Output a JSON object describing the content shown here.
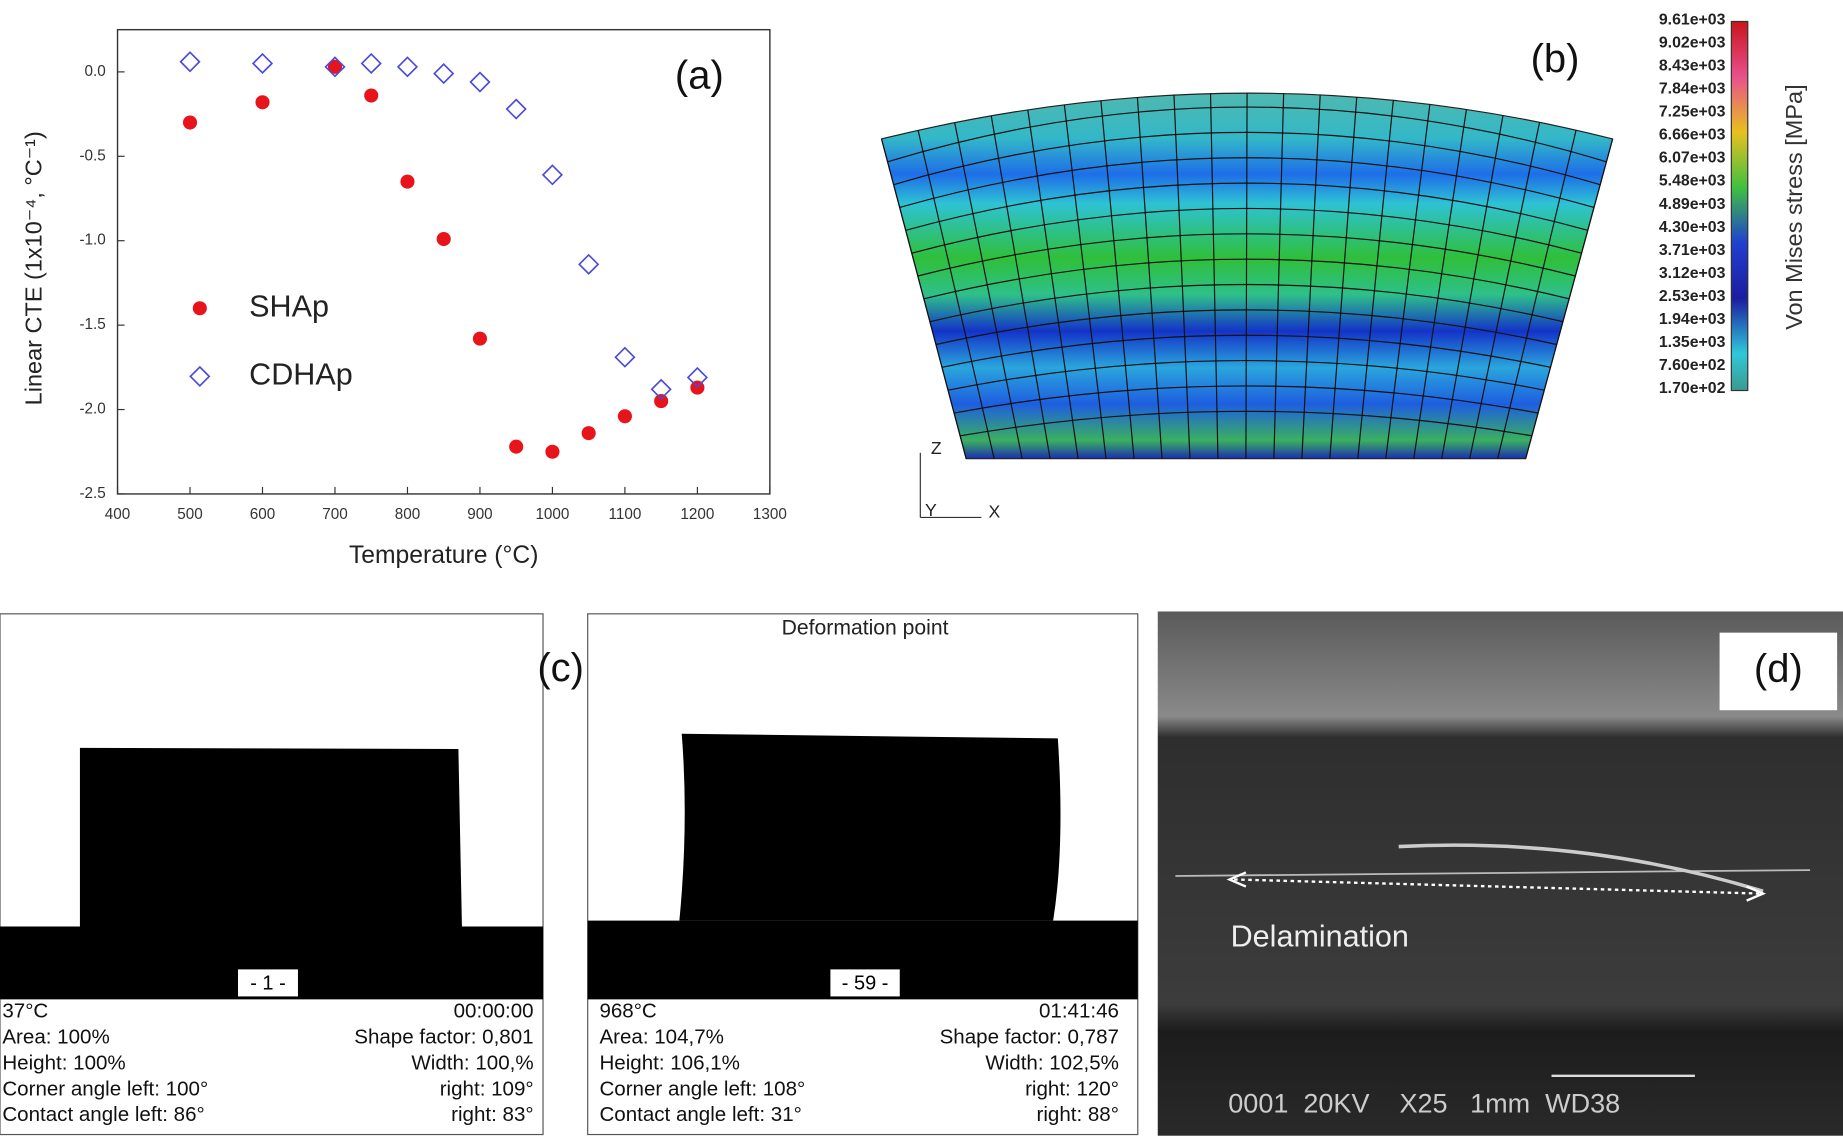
{
  "chart_data": {
    "type": "scatter",
    "panel_label": "(a)",
    "xlabel": "Temperature (°C)",
    "ylabel": "Linear CTE (1x10⁻⁴, °C⁻¹)",
    "x": [
      500,
      600,
      700,
      750,
      800,
      850,
      900,
      950,
      1000,
      1050,
      1100,
      1150,
      1200
    ],
    "xlim": [
      400,
      1300
    ],
    "xticks": [
      400,
      500,
      600,
      700,
      800,
      900,
      1000,
      1100,
      1200,
      1300
    ],
    "ylim": [
      -2.5,
      0.25
    ],
    "yticks": [
      {
        "value": 0,
        "label": "0.0"
      },
      -0.5,
      {
        "value": -1,
        "label": "-1.0"
      },
      -1.5,
      {
        "value": -2,
        "label": "-2.0"
      },
      -2.5
    ],
    "series": [
      {
        "name": "SHAp",
        "color": "#e8141c",
        "marker": "circle",
        "values": [
          -0.3,
          -0.18,
          0.03,
          -0.14,
          -0.65,
          -0.99,
          -1.58,
          -2.22,
          -2.25,
          -2.14,
          -2.04,
          -1.95,
          -1.87
        ]
      },
      {
        "name": "CDHAp",
        "color": "#4a4adc",
        "marker": "diamond",
        "values": [
          0.06,
          0.05,
          0.03,
          0.05,
          0.03,
          -0.01,
          -0.06,
          -0.22,
          -0.61,
          -1.14,
          -1.69,
          -1.88,
          -1.81
        ]
      }
    ]
  },
  "panel_b": {
    "label": "(b)",
    "colorbar_label": "Von Mises stress [MPa]",
    "colorbar_ticks": [
      "9.61e+03",
      "9.02e+03",
      "8.43e+03",
      "7.84e+03",
      "7.25e+03",
      "6.66e+03",
      "6.07e+03",
      "5.48e+03",
      "4.89e+03",
      "4.30e+03",
      "3.71e+03",
      "3.12e+03",
      "2.53e+03",
      "1.94e+03",
      "1.35e+03",
      "7.60e+02",
      "1.70e+02"
    ],
    "axes": [
      "Z",
      "Y",
      "X"
    ]
  },
  "panel_c": {
    "label": "(c)",
    "frames": [
      {
        "counter": "- 1 -",
        "rows": [
          [
            "37°C",
            "00:00:00"
          ],
          [
            "Area: 100%",
            "Shape factor: 0,801"
          ],
          [
            "Height: 100%",
            "Width: 100,%"
          ],
          [
            "Corner angle left: 100°",
            "right: 109°"
          ],
          [
            "Contact angle left: 86°",
            "right: 83°"
          ]
        ]
      },
      {
        "title": "Deformation point",
        "counter": "- 59 -",
        "rows": [
          [
            "968°C",
            "01:41:46"
          ],
          [
            "Area: 104,7%",
            "Shape factor: 0,787"
          ],
          [
            "Height: 106,1%",
            "Width: 102,5%"
          ],
          [
            "Corner angle left: 108°",
            "right: 120°"
          ],
          [
            "Contact angle left: 31°",
            "right: 88°"
          ]
        ]
      }
    ]
  },
  "panel_d": {
    "label": "(d)",
    "annotation": "Delamination",
    "info_bar": "0001  20KV    X25   1mm  WD38"
  }
}
